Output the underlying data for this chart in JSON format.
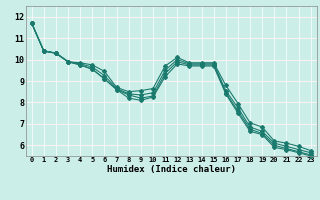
{
  "xlabel": "Humidex (Indice chaleur)",
  "ylabel": "",
  "background_color": "#cceee8",
  "line_color": "#1a7a6e",
  "grid_color": "#ffffff",
  "grid_red_color": "#ffcccc",
  "xlim": [
    -0.5,
    23.5
  ],
  "ylim": [
    5.5,
    12.5
  ],
  "xticks": [
    0,
    1,
    2,
    3,
    4,
    5,
    6,
    7,
    8,
    9,
    10,
    11,
    12,
    13,
    14,
    15,
    16,
    17,
    18,
    19,
    20,
    21,
    22,
    23
  ],
  "yticks": [
    6,
    7,
    8,
    9,
    10,
    11,
    12
  ],
  "series": [
    [
      11.7,
      10.4,
      10.3,
      9.9,
      9.85,
      9.75,
      9.45,
      8.7,
      8.5,
      8.55,
      8.65,
      9.7,
      10.1,
      9.85,
      9.85,
      9.85,
      8.8,
      7.95,
      7.05,
      6.85,
      6.2,
      6.1,
      5.95,
      5.75
    ],
    [
      11.7,
      10.4,
      10.3,
      9.9,
      9.8,
      9.65,
      9.25,
      8.65,
      8.4,
      8.35,
      8.45,
      9.5,
      10.0,
      9.8,
      9.8,
      9.8,
      8.55,
      7.75,
      6.85,
      6.65,
      6.1,
      5.95,
      5.8,
      5.65
    ],
    [
      11.7,
      10.4,
      10.3,
      9.9,
      9.75,
      9.55,
      9.1,
      8.6,
      8.35,
      8.2,
      8.3,
      9.35,
      9.9,
      9.75,
      9.75,
      9.75,
      8.45,
      7.6,
      6.75,
      6.55,
      6.0,
      5.85,
      5.7,
      5.55
    ],
    [
      11.7,
      10.4,
      10.3,
      9.9,
      9.75,
      9.55,
      9.1,
      8.6,
      8.2,
      8.1,
      8.25,
      9.2,
      9.8,
      9.7,
      9.7,
      9.7,
      8.4,
      7.5,
      6.65,
      6.5,
      5.9,
      5.8,
      5.65,
      5.5
    ]
  ],
  "marker": "D",
  "markersize": 2.0,
  "linewidth": 0.8
}
